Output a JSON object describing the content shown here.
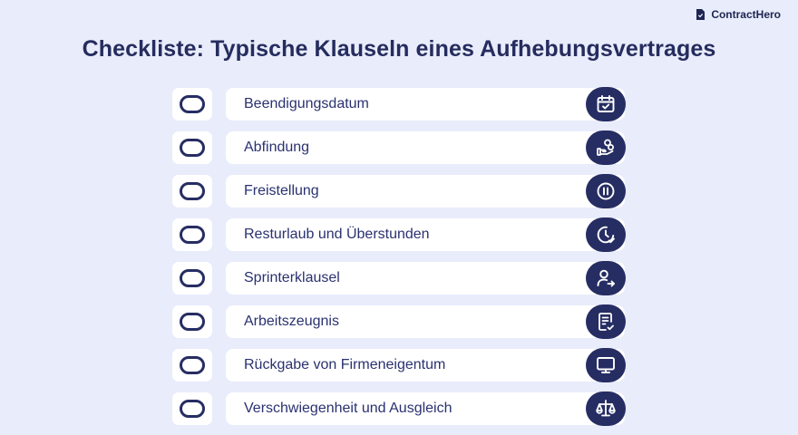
{
  "brand": {
    "name": "ContractHero"
  },
  "title": "Checkliste: Typische Klauseln eines Aufhebungsvertrages",
  "items": [
    {
      "label": "Beendigungsdatum",
      "icon": "calendar-check-icon",
      "checked": false
    },
    {
      "label": "Abfindung",
      "icon": "hand-coins-icon",
      "checked": false
    },
    {
      "label": "Freistellung",
      "icon": "pause-circle-icon",
      "checked": false
    },
    {
      "label": "Resturlaub und Überstunden",
      "icon": "clock-check-icon",
      "checked": false
    },
    {
      "label": "Sprinterklausel",
      "icon": "user-arrow-right-icon",
      "checked": false
    },
    {
      "label": "Arbeitszeugnis",
      "icon": "document-check-icon",
      "checked": false
    },
    {
      "label": "Rückgabe von Firmeneigentum",
      "icon": "monitor-icon",
      "checked": false
    },
    {
      "label": "Verschwiegenheit und Ausgleich",
      "icon": "scales-icon",
      "checked": false
    }
  ],
  "colors": {
    "background": "#e9ecfb",
    "navy": "#262d63",
    "card": "#ffffff",
    "text": "#2a3170"
  }
}
